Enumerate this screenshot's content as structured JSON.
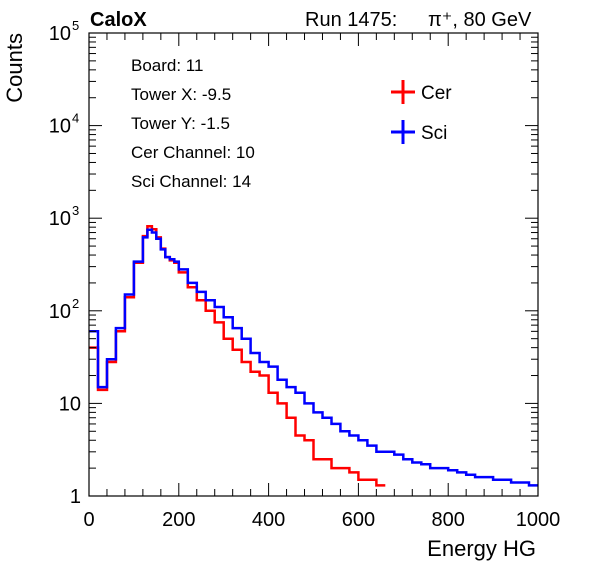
{
  "header": {
    "experiment": "CaloX",
    "run_text": "Run 1475:",
    "beam_text": "π⁺, 80 GeV"
  },
  "info_box": {
    "lines": [
      "Board: 11",
      "Tower X: -9.5",
      "Tower Y: -1.5",
      "Cer Channel: 10",
      "Sci Channel: 14"
    ]
  },
  "chart_data": {
    "type": "line",
    "title": "",
    "xlabel": "Energy HG",
    "ylabel": "Counts",
    "xlim": [
      0,
      1000
    ],
    "ylim": [
      1,
      100000
    ],
    "y_scale": "log",
    "x_ticks": [
      0,
      200,
      400,
      600,
      800,
      1000
    ],
    "y_ticks": [
      {
        "value": 1,
        "label": "1"
      },
      {
        "value": 10,
        "label": "10"
      },
      {
        "value": 100,
        "label": "10",
        "exp": "2"
      },
      {
        "value": 1000,
        "label": "10",
        "exp": "3"
      },
      {
        "value": 10000,
        "label": "10",
        "exp": "4"
      },
      {
        "value": 100000,
        "label": "10",
        "exp": "5"
      }
    ],
    "legend_position": "top-right",
    "series": [
      {
        "name": "Cer",
        "color": "#ff0000",
        "points": [
          [
            0,
            40
          ],
          [
            20,
            14
          ],
          [
            40,
            28
          ],
          [
            60,
            60
          ],
          [
            80,
            140
          ],
          [
            100,
            330
          ],
          [
            120,
            640
          ],
          [
            130,
            820
          ],
          [
            140,
            760
          ],
          [
            150,
            620
          ],
          [
            160,
            470
          ],
          [
            170,
            380
          ],
          [
            180,
            350
          ],
          [
            190,
            330
          ],
          [
            200,
            260
          ],
          [
            220,
            180
          ],
          [
            240,
            130
          ],
          [
            260,
            100
          ],
          [
            280,
            75
          ],
          [
            300,
            50
          ],
          [
            320,
            38
          ],
          [
            340,
            28
          ],
          [
            360,
            22
          ],
          [
            380,
            20
          ],
          [
            400,
            13
          ],
          [
            420,
            10
          ],
          [
            440,
            7
          ],
          [
            460,
            4.5
          ],
          [
            480,
            4
          ],
          [
            500,
            2.5
          ],
          [
            520,
            2.5
          ],
          [
            540,
            2
          ],
          [
            560,
            2
          ],
          [
            580,
            1.8
          ],
          [
            600,
            1.5
          ],
          [
            620,
            1.5
          ],
          [
            640,
            1.3
          ]
        ]
      },
      {
        "name": "Sci",
        "color": "#0000ff",
        "points": [
          [
            0,
            60
          ],
          [
            20,
            15
          ],
          [
            40,
            30
          ],
          [
            60,
            65
          ],
          [
            80,
            150
          ],
          [
            100,
            340
          ],
          [
            120,
            620
          ],
          [
            130,
            750
          ],
          [
            140,
            700
          ],
          [
            150,
            600
          ],
          [
            160,
            460
          ],
          [
            170,
            380
          ],
          [
            180,
            360
          ],
          [
            190,
            340
          ],
          [
            200,
            280
          ],
          [
            220,
            200
          ],
          [
            240,
            160
          ],
          [
            260,
            130
          ],
          [
            280,
            110
          ],
          [
            300,
            85
          ],
          [
            320,
            65
          ],
          [
            340,
            50
          ],
          [
            360,
            35
          ],
          [
            380,
            28
          ],
          [
            400,
            25
          ],
          [
            420,
            18
          ],
          [
            440,
            15
          ],
          [
            460,
            13
          ],
          [
            480,
            10
          ],
          [
            500,
            8
          ],
          [
            520,
            7
          ],
          [
            540,
            6
          ],
          [
            560,
            5
          ],
          [
            580,
            4.5
          ],
          [
            600,
            4
          ],
          [
            620,
            3.5
          ],
          [
            640,
            3
          ],
          [
            660,
            3
          ],
          [
            680,
            2.8
          ],
          [
            700,
            2.5
          ],
          [
            720,
            2.3
          ],
          [
            740,
            2.2
          ],
          [
            760,
            2
          ],
          [
            780,
            2
          ],
          [
            800,
            1.9
          ],
          [
            820,
            1.8
          ],
          [
            840,
            1.7
          ],
          [
            860,
            1.6
          ],
          [
            880,
            1.6
          ],
          [
            900,
            1.5
          ],
          [
            920,
            1.5
          ],
          [
            940,
            1.4
          ],
          [
            960,
            1.4
          ],
          [
            980,
            1.3
          ],
          [
            1000,
            1.3
          ]
        ]
      }
    ]
  }
}
